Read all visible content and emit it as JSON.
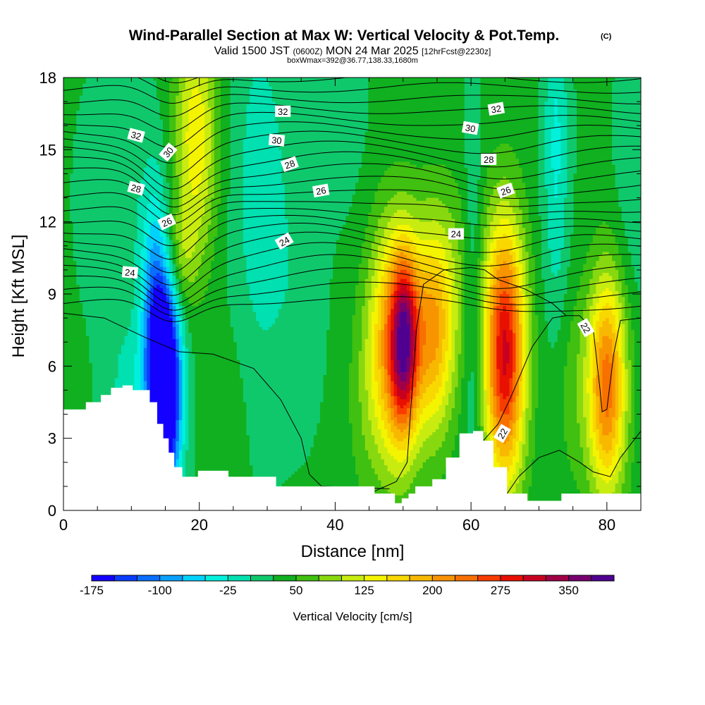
{
  "header": {
    "title": "Wind-Parallel Section at Max W: Vertical Velocity & Pot.Temp.",
    "copyright": "(C)",
    "valid_a": "Valid 1500 JST",
    "valid_b": "(0600Z)",
    "valid_c": "MON 24 Mar 2025",
    "valid_d": "[12hrFcst@2230z]",
    "box_w_max": "boxWmax=392@36.77,138.33,1680m"
  },
  "chart_data": {
    "type": "heatmap",
    "title": "Wind-Parallel Section at Max W: Vertical Velocity & Pot.Temp.",
    "xlabel": "Distance [nm]",
    "ylabel": "Height [Kft MSL]",
    "xlim": [
      0,
      85
    ],
    "ylim": [
      0,
      18
    ],
    "x_ticks": [
      0,
      20,
      40,
      60,
      80
    ],
    "y_ticks": [
      0,
      3,
      6,
      9,
      12,
      15,
      18
    ],
    "x_tick_labels": [
      "0",
      "20",
      "40",
      "60",
      "80"
    ],
    "y_tick_labels": [
      "0",
      "3",
      "6",
      "9",
      "12",
      "15",
      "18"
    ],
    "grid": false,
    "colorbar": {
      "label": "Vertical Velocity [cm/s]",
      "min": -175,
      "max": 400,
      "step": 25,
      "tick_values": [
        -175,
        -100,
        -25,
        50,
        125,
        200,
        275,
        350
      ],
      "tick_labels": [
        "-175",
        "-100",
        "-25",
        "50",
        "125",
        "200",
        "275",
        "350"
      ],
      "colors": [
        "#1400ff",
        "#0a3cff",
        "#0a6eff",
        "#0aa0ff",
        "#00d2ff",
        "#00f0dc",
        "#00e0b0",
        "#10c86c",
        "#10b020",
        "#40c010",
        "#88d810",
        "#c8ec10",
        "#f4f400",
        "#f8d800",
        "#f8b800",
        "#f89400",
        "#f87000",
        "#f83c00",
        "#e81000",
        "#c80020",
        "#a00048",
        "#780070",
        "#500090"
      ]
    },
    "terrain_profile": {
      "x": [
        0,
        3.3,
        5.5,
        7,
        8.7,
        10.2,
        12.7,
        13.8,
        14.7,
        15.5,
        16.3,
        17.5,
        19.8,
        24.3,
        31.3,
        45.8,
        48.8,
        49.8,
        50.8,
        51.8,
        54.3,
        56.3,
        58.3,
        60.3,
        61.8,
        63.3,
        65.3,
        68.3,
        70.3,
        73.3,
        75.3,
        85
      ],
      "height_kft": [
        4.2,
        4.5,
        4.8,
        5.1,
        5.2,
        5.0,
        4.5,
        3.6,
        3.0,
        2.4,
        1.8,
        1.4,
        1.65,
        1.4,
        1.0,
        0.7,
        0.3,
        0.5,
        0.7,
        1.0,
        1.3,
        2.2,
        3.2,
        3.3,
        2.9,
        1.8,
        0.7,
        0.4,
        0.4,
        0.7,
        0.7,
        0.7
      ]
    },
    "vertical_velocity_features": [
      {
        "x": 15,
        "height_kft": 5,
        "peak_cm_s": -175
      },
      {
        "x": 19,
        "height_kft": 16,
        "peak_cm_s": 140
      },
      {
        "x": 50,
        "height_kft": 6.5,
        "peak_cm_s": 392
      },
      {
        "x": 65,
        "height_kft": 6,
        "peak_cm_s": 290
      },
      {
        "x": 80,
        "height_kft": 5,
        "peak_cm_s": 220
      }
    ],
    "pot_temp_contour_labels": [
      {
        "value": "32",
        "x": 10.7,
        "y": 15.6,
        "angle": 15
      },
      {
        "value": "30",
        "x": 15.4,
        "y": 14.9,
        "angle": -50
      },
      {
        "value": "28",
        "x": 10.7,
        "y": 13.4,
        "angle": 15
      },
      {
        "value": "26",
        "x": 15.2,
        "y": 12.0,
        "angle": -25
      },
      {
        "value": "24",
        "x": 9.8,
        "y": 9.9,
        "angle": 5
      },
      {
        "value": "32",
        "x": 32.3,
        "y": 16.6,
        "angle": 0
      },
      {
        "value": "30",
        "x": 31.4,
        "y": 15.4,
        "angle": 5
      },
      {
        "value": "28",
        "x": 33.3,
        "y": 14.4,
        "angle": -20
      },
      {
        "value": "26",
        "x": 37.9,
        "y": 13.3,
        "angle": -10
      },
      {
        "value": "24",
        "x": 32.5,
        "y": 11.2,
        "angle": -30
      },
      {
        "value": "32",
        "x": 63.7,
        "y": 16.7,
        "angle": -10
      },
      {
        "value": "30",
        "x": 59.9,
        "y": 15.9,
        "angle": 10
      },
      {
        "value": "28",
        "x": 62.6,
        "y": 14.6,
        "angle": 0
      },
      {
        "value": "26",
        "x": 65.1,
        "y": 13.3,
        "angle": -20
      },
      {
        "value": "24",
        "x": 57.8,
        "y": 11.5,
        "angle": 0
      },
      {
        "value": "22",
        "x": 64.6,
        "y": 3.2,
        "angle": -60
      },
      {
        "value": "22",
        "x": 76.9,
        "y": 7.6,
        "angle": 60
      }
    ]
  }
}
